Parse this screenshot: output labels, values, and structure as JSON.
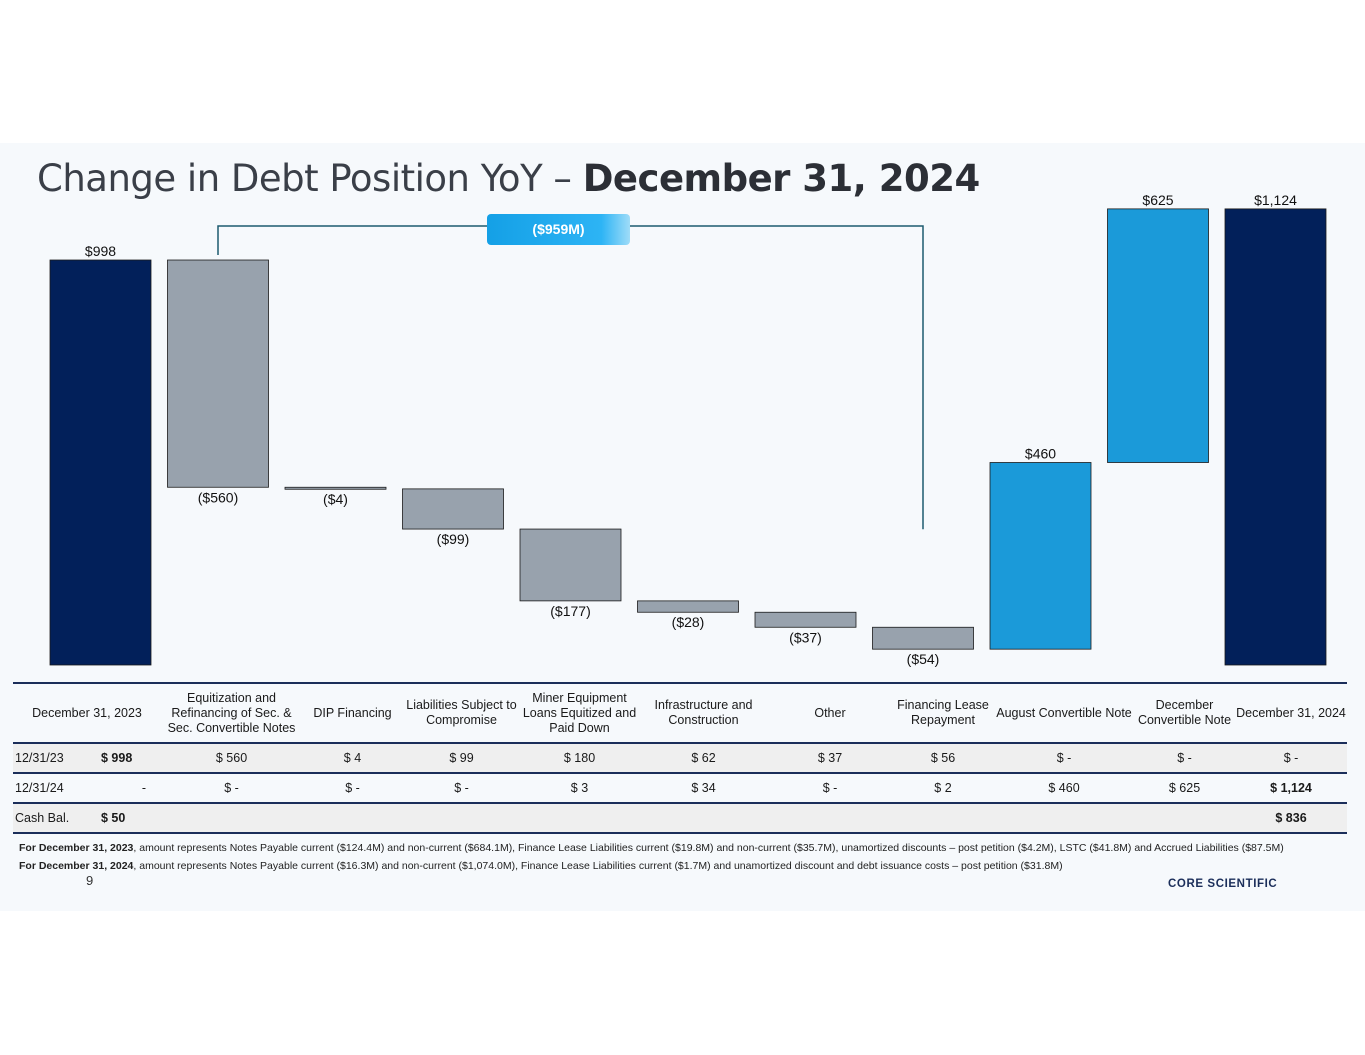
{
  "title": {
    "prefix": "Change in Debt Position YoY – ",
    "bold": "December 31, 2024"
  },
  "bracket_label": "($959M)",
  "colors": {
    "total": "#02205a",
    "decrease": "#98a2ad",
    "increase": "#1b9ad9",
    "bracket": "#1d5b6e"
  },
  "chart_data": {
    "type": "waterfall",
    "title": "Change in Debt Position YoY – December 31, 2024",
    "unit": "$M",
    "categories": [
      "December 31, 2023",
      "Equitization and Refinancing of Sec. & Sec. Convertible Notes",
      "DIP Financing",
      "Liabilities Subject to Compromise",
      "Miner Equipment Loans Equitized and Paid Down",
      "Infrastructure and Construction",
      "Other",
      "Financing Lease Repayment",
      "August Convertible Note",
      "December Convertible Note",
      "December 31, 2024"
    ],
    "values": [
      998,
      -560,
      -4,
      -99,
      -177,
      -28,
      -37,
      -54,
      460,
      625,
      1124
    ],
    "kinds": [
      "total",
      "decrease",
      "decrease",
      "decrease",
      "decrease",
      "decrease",
      "decrease",
      "decrease",
      "increase",
      "increase",
      "total"
    ],
    "labels": [
      "$998",
      "($560)",
      "($4)",
      "($99)",
      "($177)",
      "($28)",
      "($37)",
      "($54)",
      "$460",
      "$625",
      "$1,124"
    ],
    "bracket": {
      "label": "($959M)",
      "from_index": 1,
      "to_index": 7
    }
  },
  "table": {
    "headers": [
      "December 31, 2023",
      "Equitization and Refinancing of Sec. & Sec. Convertible Notes",
      "DIP Financing",
      "Liabilities Subject to Compromise",
      "Miner Equipment Loans Equitized and Paid Down",
      "Infrastructure and Construction",
      "Other",
      "Financing Lease Repayment",
      "August Convertible Note",
      "December Convertible Note",
      "December 31, 2024"
    ],
    "rows": [
      {
        "label": "12/31/23",
        "first": "$ 998",
        "cells": [
          "$    560",
          "$  4",
          "$  99",
          "$ 180",
          "$  62",
          "$  37",
          "$  56",
          "$     -",
          "$      -",
          "$        -"
        ]
      },
      {
        "label": "12/31/24",
        "first": "-",
        "cells": [
          "$     -",
          "$  -",
          "$    -",
          "$    3",
          "$  34",
          "$  -",
          "$   2",
          "$  460",
          "$  625",
          "$   1,124"
        ]
      },
      {
        "label": "Cash Bal.",
        "first": "$ 50",
        "cells": [
          "",
          "",
          "",
          "",
          "",
          "",
          "",
          "",
          "",
          "$     836"
        ]
      }
    ]
  },
  "footnotes": [
    {
      "bold": "For December 31, 2023",
      "text": ", amount represents Notes Payable current ($124.4M) and non-current ($684.1M), Finance Lease Liabilities current ($19.8M) and non-current ($35.7M), unamortized discounts – post petition ($4.2M), LSTC ($41.8M) and Accrued Liabilities ($87.5M)"
    },
    {
      "bold": "For December 31, 2024",
      "text": ", amount represents Notes Payable current ($16.3M) and non-current ($1,074.0M), Finance Lease Liabilities current ($1.7M) and unamortized discount and debt issuance costs – post petition ($31.8M)"
    }
  ],
  "page_number": "9",
  "brand": "CORE SCIENTIFIC"
}
